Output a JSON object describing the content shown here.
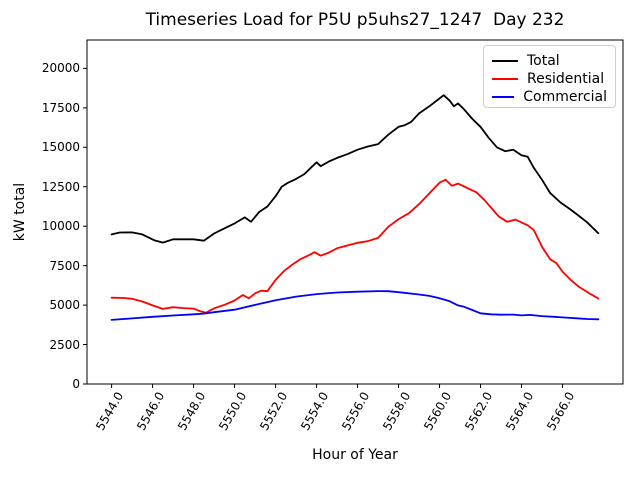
{
  "figure": {
    "background": "#ffffff"
  },
  "chart_data": {
    "type": "line",
    "title": "Timeseries Load for P5U p5uhs27_1247  Day 232",
    "xlabel": "Hour of Year",
    "ylabel": "kW total",
    "xlim": [
      5542.8,
      5568.95
    ],
    "ylim": [
      0,
      21800
    ],
    "grid": false,
    "legend_position": "upper right",
    "x_tick_values": [
      5544,
      5546,
      5548,
      5550,
      5552,
      5554,
      5556,
      5558,
      5560,
      5562,
      5564,
      5566
    ],
    "x_tick_labels": [
      "5544.0",
      "5546.0",
      "5548.0",
      "5550.0",
      "5552.0",
      "5554.0",
      "5556.0",
      "5558.0",
      "5560.0",
      "5562.0",
      "5564.0",
      "5566.0"
    ],
    "x_tick_rotation_deg": 60,
    "y_tick_values": [
      0,
      2500,
      5000,
      7500,
      10000,
      12500,
      15000,
      17500,
      20000
    ],
    "y_tick_labels": [
      "0",
      "2500",
      "5000",
      "7500",
      "10000",
      "12500",
      "15000",
      "17500",
      "20000"
    ],
    "series": [
      {
        "name": "Total",
        "color": "#000000",
        "points": [
          [
            5544.0,
            9480
          ],
          [
            5544.4,
            9600
          ],
          [
            5545.0,
            9610
          ],
          [
            5545.5,
            9480
          ],
          [
            5546.1,
            9100
          ],
          [
            5546.5,
            8960
          ],
          [
            5547.0,
            9170
          ],
          [
            5548.0,
            9170
          ],
          [
            5548.5,
            9080
          ],
          [
            5549.0,
            9540
          ],
          [
            5549.5,
            9860
          ],
          [
            5550.0,
            10180
          ],
          [
            5550.5,
            10560
          ],
          [
            5550.8,
            10280
          ],
          [
            5551.2,
            10900
          ],
          [
            5551.6,
            11250
          ],
          [
            5552.0,
            11900
          ],
          [
            5552.3,
            12500
          ],
          [
            5552.6,
            12750
          ],
          [
            5553.0,
            13000
          ],
          [
            5553.4,
            13300
          ],
          [
            5553.8,
            13800
          ],
          [
            5554.0,
            14050
          ],
          [
            5554.2,
            13800
          ],
          [
            5554.6,
            14100
          ],
          [
            5555.0,
            14330
          ],
          [
            5555.5,
            14560
          ],
          [
            5556.0,
            14850
          ],
          [
            5556.5,
            15050
          ],
          [
            5557.0,
            15200
          ],
          [
            5557.5,
            15800
          ],
          [
            5558.0,
            16300
          ],
          [
            5558.3,
            16400
          ],
          [
            5558.6,
            16600
          ],
          [
            5559.0,
            17150
          ],
          [
            5559.5,
            17600
          ],
          [
            5560.0,
            18100
          ],
          [
            5560.2,
            18300
          ],
          [
            5560.5,
            17950
          ],
          [
            5560.7,
            17600
          ],
          [
            5560.9,
            17780
          ],
          [
            5561.2,
            17400
          ],
          [
            5561.6,
            16800
          ],
          [
            5562.0,
            16300
          ],
          [
            5562.4,
            15600
          ],
          [
            5562.8,
            15000
          ],
          [
            5563.2,
            14750
          ],
          [
            5563.6,
            14850
          ],
          [
            5564.0,
            14500
          ],
          [
            5564.3,
            14400
          ],
          [
            5564.6,
            13700
          ],
          [
            5565.0,
            12950
          ],
          [
            5565.4,
            12100
          ],
          [
            5565.9,
            11500
          ],
          [
            5566.4,
            11050
          ],
          [
            5566.8,
            10650
          ],
          [
            5567.2,
            10250
          ],
          [
            5567.75,
            9550
          ]
        ]
      },
      {
        "name": "Residential",
        "color": "#ff0000",
        "points": [
          [
            5544.0,
            5470
          ],
          [
            5544.6,
            5450
          ],
          [
            5545.0,
            5400
          ],
          [
            5545.5,
            5230
          ],
          [
            5546.0,
            4980
          ],
          [
            5546.5,
            4760
          ],
          [
            5547.0,
            4870
          ],
          [
            5547.5,
            4810
          ],
          [
            5548.0,
            4780
          ],
          [
            5548.3,
            4620
          ],
          [
            5548.6,
            4510
          ],
          [
            5549.0,
            4800
          ],
          [
            5549.5,
            5010
          ],
          [
            5550.0,
            5290
          ],
          [
            5550.4,
            5640
          ],
          [
            5550.7,
            5430
          ],
          [
            5551.0,
            5750
          ],
          [
            5551.3,
            5910
          ],
          [
            5551.6,
            5880
          ],
          [
            5552.0,
            6600
          ],
          [
            5552.4,
            7150
          ],
          [
            5552.8,
            7550
          ],
          [
            5553.2,
            7900
          ],
          [
            5553.6,
            8150
          ],
          [
            5553.9,
            8350
          ],
          [
            5554.2,
            8130
          ],
          [
            5554.6,
            8330
          ],
          [
            5555.0,
            8600
          ],
          [
            5555.5,
            8780
          ],
          [
            5556.0,
            8950
          ],
          [
            5556.5,
            9050
          ],
          [
            5557.0,
            9260
          ],
          [
            5557.5,
            9960
          ],
          [
            5558.0,
            10450
          ],
          [
            5558.5,
            10820
          ],
          [
            5559.0,
            11400
          ],
          [
            5559.5,
            12080
          ],
          [
            5560.0,
            12760
          ],
          [
            5560.3,
            12950
          ],
          [
            5560.6,
            12560
          ],
          [
            5560.9,
            12700
          ],
          [
            5561.3,
            12450
          ],
          [
            5561.8,
            12150
          ],
          [
            5562.2,
            11650
          ],
          [
            5562.6,
            11050
          ],
          [
            5562.9,
            10600
          ],
          [
            5563.3,
            10280
          ],
          [
            5563.7,
            10420
          ],
          [
            5564.0,
            10240
          ],
          [
            5564.3,
            10060
          ],
          [
            5564.6,
            9750
          ],
          [
            5565.0,
            8700
          ],
          [
            5565.4,
            7900
          ],
          [
            5565.7,
            7660
          ],
          [
            5566.0,
            7120
          ],
          [
            5566.4,
            6600
          ],
          [
            5566.8,
            6160
          ],
          [
            5567.3,
            5750
          ],
          [
            5567.75,
            5420
          ]
        ]
      },
      {
        "name": "Commercial",
        "color": "#0000ff",
        "points": [
          [
            5544.0,
            4060
          ],
          [
            5544.5,
            4110
          ],
          [
            5545.0,
            4160
          ],
          [
            5546.0,
            4260
          ],
          [
            5547.0,
            4340
          ],
          [
            5548.0,
            4420
          ],
          [
            5548.5,
            4460
          ],
          [
            5549.0,
            4550
          ],
          [
            5550.0,
            4710
          ],
          [
            5551.0,
            5010
          ],
          [
            5552.0,
            5310
          ],
          [
            5553.0,
            5540
          ],
          [
            5554.0,
            5700
          ],
          [
            5555.0,
            5800
          ],
          [
            5556.0,
            5850
          ],
          [
            5557.0,
            5890
          ],
          [
            5557.5,
            5880
          ],
          [
            5558.0,
            5820
          ],
          [
            5559.0,
            5670
          ],
          [
            5559.5,
            5580
          ],
          [
            5560.0,
            5430
          ],
          [
            5560.5,
            5240
          ],
          [
            5560.9,
            4980
          ],
          [
            5561.2,
            4890
          ],
          [
            5561.6,
            4690
          ],
          [
            5562.0,
            4480
          ],
          [
            5562.5,
            4420
          ],
          [
            5563.0,
            4390
          ],
          [
            5563.6,
            4400
          ],
          [
            5564.0,
            4350
          ],
          [
            5564.4,
            4380
          ],
          [
            5565.0,
            4300
          ],
          [
            5565.6,
            4260
          ],
          [
            5566.0,
            4220
          ],
          [
            5566.6,
            4170
          ],
          [
            5567.2,
            4120
          ],
          [
            5567.75,
            4100
          ]
        ]
      }
    ]
  }
}
